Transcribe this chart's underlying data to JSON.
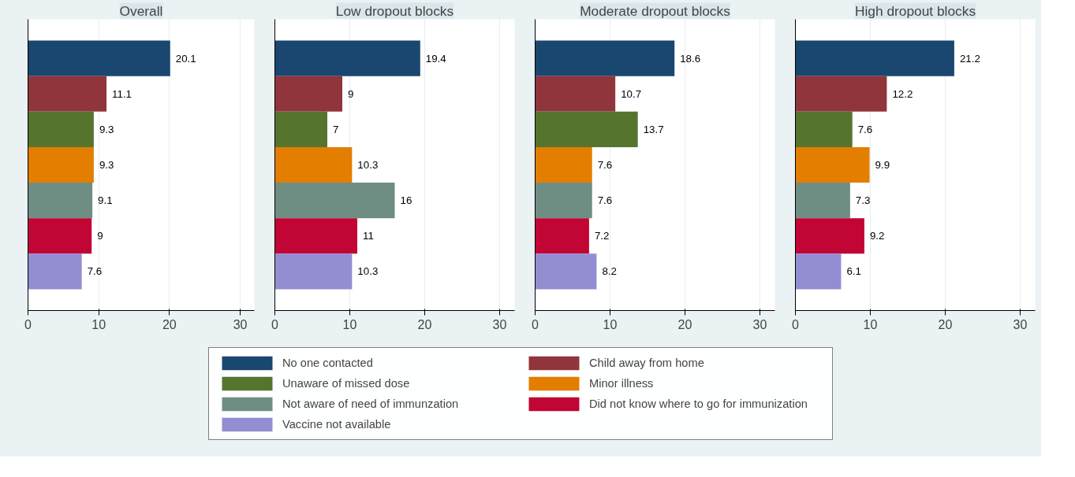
{
  "chart_data": [
    {
      "type": "bar",
      "orientation": "horizontal",
      "title": "Overall",
      "categories": [
        null
      ],
      "xlim": [
        0,
        32
      ],
      "xticks": [
        0,
        10,
        20,
        30
      ],
      "grid": "x",
      "data_labels": true,
      "legend": "bottom",
      "series": [
        {
          "name": "No one contacted",
          "color": "#1a476f",
          "values": [
            20.1
          ]
        },
        {
          "name": "Child away from home",
          "color": "#90353b",
          "values": [
            11.1
          ]
        },
        {
          "name": "Unaware of missed dose",
          "color": "#55752f",
          "values": [
            9.3
          ]
        },
        {
          "name": "Minor illness",
          "color": "#e37e00",
          "values": [
            9.3
          ]
        },
        {
          "name": "Not aware of need of immunzation",
          "color": "#6e8e84",
          "values": [
            9.1
          ]
        },
        {
          "name": "Did not know where to go for immunization",
          "color": "#c10534",
          "values": [
            9
          ]
        },
        {
          "name": "Vaccine not available",
          "color": "#938dd2",
          "values": [
            7.6
          ]
        }
      ]
    },
    {
      "type": "bar",
      "orientation": "horizontal",
      "title": "Low dropout blocks",
      "categories": [
        null
      ],
      "xlim": [
        0,
        32
      ],
      "xticks": [
        0,
        10,
        20,
        30
      ],
      "grid": "x",
      "data_labels": true,
      "series": [
        {
          "color": "#1a476f",
          "values": [
            19.4
          ]
        },
        {
          "color": "#90353b",
          "values": [
            9
          ]
        },
        {
          "color": "#55752f",
          "values": [
            7
          ]
        },
        {
          "color": "#e37e00",
          "values": [
            10.3
          ]
        },
        {
          "color": "#6e8e84",
          "values": [
            16
          ]
        },
        {
          "color": "#c10534",
          "values": [
            11
          ]
        },
        {
          "color": "#938dd2",
          "values": [
            10.3
          ]
        }
      ]
    },
    {
      "type": "bar",
      "orientation": "horizontal",
      "title": "Moderate dropout blocks",
      "categories": [
        null
      ],
      "xlim": [
        0,
        32
      ],
      "xticks": [
        0,
        10,
        20,
        30
      ],
      "grid": "x",
      "data_labels": true,
      "series": [
        {
          "color": "#1a476f",
          "values": [
            18.6
          ]
        },
        {
          "color": "#90353b",
          "values": [
            10.7
          ]
        },
        {
          "color": "#55752f",
          "values": [
            13.7
          ]
        },
        {
          "color": "#e37e00",
          "values": [
            7.6
          ]
        },
        {
          "color": "#6e8e84",
          "values": [
            7.6
          ]
        },
        {
          "color": "#c10534",
          "values": [
            7.2
          ]
        },
        {
          "color": "#938dd2",
          "values": [
            8.2
          ]
        }
      ]
    },
    {
      "type": "bar",
      "orientation": "horizontal",
      "title": "High dropout blocks",
      "categories": [
        null
      ],
      "xlim": [
        0,
        32
      ],
      "xticks": [
        0,
        10,
        20,
        30
      ],
      "grid": "x",
      "data_labels": true,
      "series": [
        {
          "color": "#1a476f",
          "values": [
            21.2
          ]
        },
        {
          "color": "#90353b",
          "values": [
            12.2
          ]
        },
        {
          "color": "#55752f",
          "values": [
            7.6
          ]
        },
        {
          "color": "#e37e00",
          "values": [
            9.9
          ]
        },
        {
          "color": "#6e8e84",
          "values": [
            7.3
          ]
        },
        {
          "color": "#c10534",
          "values": [
            9.2
          ]
        },
        {
          "color": "#938dd2",
          "values": [
            6.1
          ]
        }
      ]
    }
  ]
}
